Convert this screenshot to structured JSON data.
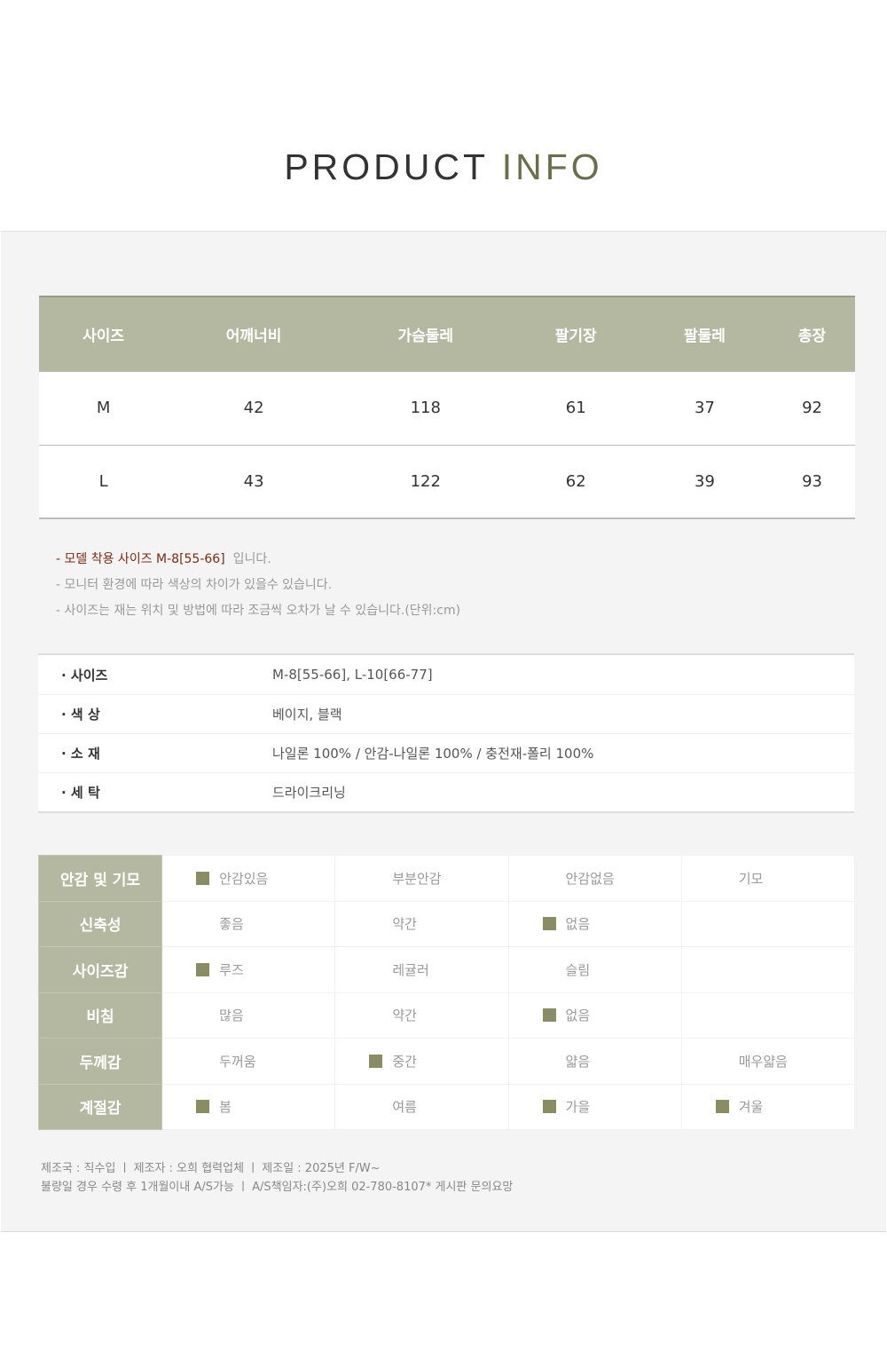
{
  "title": {
    "part1": "PRODUCT",
    "part2": "INFO"
  },
  "size_table": {
    "headers": [
      "사이즈",
      "어깨너비",
      "가슴둘레",
      "팔기장",
      "팔둘레",
      "총장"
    ],
    "rows": [
      [
        "M",
        "42",
        "118",
        "61",
        "37",
        "92"
      ],
      [
        "L",
        "43",
        "122",
        "62",
        "39",
        "93"
      ]
    ]
  },
  "notes": {
    "model_prefix": "- ",
    "model_text": "모델 착용 사이즈  M-8[55-66]",
    "model_suffix": "입니다.",
    "line2": "- 모니터 환경에 따라 색상의 차이가 있을수 있습니다.",
    "line3": "- 사이즈는 재는 위치 및 방법에 따라 조금씩 오차가 날 수 있습니다.(단위:cm)"
  },
  "info": [
    {
      "k": "·  사이즈",
      "v": "M-8[55-66], L-10[66-77]"
    },
    {
      "k": "·  색   상",
      "v": "베이지, 블랙"
    },
    {
      "k": "·  소   재",
      "v": "나일론 100% / 안감-나일론 100% / 충전재-폴리 100%"
    },
    {
      "k": "·  세   탁",
      "v": "드라이크리닝"
    }
  ],
  "grid": [
    {
      "label": "안감 및 기모",
      "opts": [
        {
          "t": "안감있음",
          "on": true
        },
        {
          "t": "부분안감",
          "on": false
        },
        {
          "t": "안감없음",
          "on": false
        },
        {
          "t": "기모",
          "on": false
        }
      ]
    },
    {
      "label": "신축성",
      "opts": [
        {
          "t": "좋음",
          "on": false
        },
        {
          "t": "약간",
          "on": false
        },
        {
          "t": "없음",
          "on": true
        },
        {
          "t": "",
          "on": false
        }
      ]
    },
    {
      "label": "사이즈감",
      "opts": [
        {
          "t": "루즈",
          "on": true
        },
        {
          "t": "레귤러",
          "on": false
        },
        {
          "t": "슬림",
          "on": false
        },
        {
          "t": "",
          "on": false
        }
      ]
    },
    {
      "label": "비침",
      "opts": [
        {
          "t": "많음",
          "on": false
        },
        {
          "t": "약간",
          "on": false
        },
        {
          "t": "없음",
          "on": true
        },
        {
          "t": "",
          "on": false
        }
      ]
    },
    {
      "label": "두께감",
      "opts": [
        {
          "t": "두꺼움",
          "on": false
        },
        {
          "t": "중간",
          "on": true
        },
        {
          "t": "얇음",
          "on": false
        },
        {
          "t": "매우얇음",
          "on": false
        }
      ]
    },
    {
      "label": "계절감",
      "opts": [
        {
          "t": "봄",
          "on": true
        },
        {
          "t": "여름",
          "on": false
        },
        {
          "t": "가을",
          "on": true
        },
        {
          "t": "겨울",
          "on": true
        }
      ]
    }
  ],
  "footer": {
    "line1": "제조국 : 직수입 ㅣ 제조자 : 오희 협력업체 ㅣ 제조일 : 2025년 F/W~",
    "line2": "불량일 경우 수령 후 1개월이내 A/S가능 ㅣ A/S책임자:(주)오희 02-780-8107* 게시판 문의요망"
  },
  "colors": {
    "header": "#b5b8a0",
    "marker": "#8a8c64",
    "accent": "#6b6e4a",
    "model_note": "#7b2a10"
  }
}
